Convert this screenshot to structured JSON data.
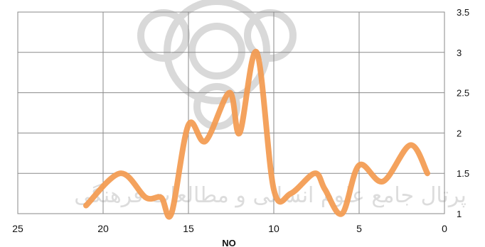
{
  "chart_data": {
    "type": "line",
    "title": "",
    "xlabel": "NO",
    "ylabel": "",
    "x_reversed": true,
    "xlim": [
      0,
      25
    ],
    "ylim": [
      1,
      3.5
    ],
    "x_ticks": [
      25,
      20,
      15,
      10,
      5,
      0
    ],
    "y_ticks": [
      1,
      1.5,
      2,
      2.5,
      3,
      3.5
    ],
    "y_axis_side": "right",
    "grid": true,
    "smooth": true,
    "series": [
      {
        "color": "#f39a4f",
        "x": [
          21,
          19,
          17.5,
          16.6,
          16,
          15,
          14,
          12.6,
          12,
          11,
          10,
          9,
          7.6,
          7,
          6,
          5,
          3.6,
          2,
          1
        ],
        "y": [
          1.1,
          1.5,
          1.2,
          1.2,
          1.0,
          2.1,
          1.9,
          2.5,
          2.0,
          3.0,
          1.3,
          1.25,
          1.5,
          1.3,
          1.0,
          1.6,
          1.4,
          1.85,
          1.5
        ]
      }
    ]
  },
  "watermark": {
    "text": "پرتال جامع علوم انسانی و مطالعات فرهنگی"
  }
}
